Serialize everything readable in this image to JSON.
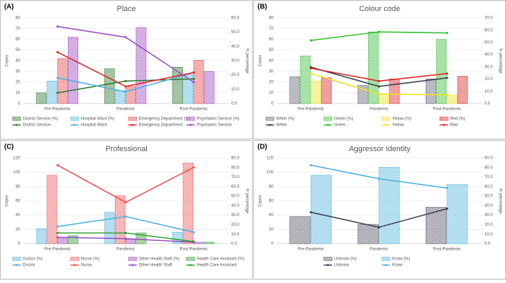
{
  "chart_data": [
    {
      "type": "combo",
      "panel": "(A)",
      "title": "Place",
      "y_label": "Cases",
      "y2_label": "% percentage",
      "categories": [
        "Pre-Pandemic",
        "Pandemic",
        "Post-Pandemic"
      ],
      "ylim": [
        0,
        80
      ],
      "yticks": [
        0,
        10,
        20,
        30,
        40,
        50,
        60,
        70,
        80
      ],
      "y2lim": [
        0,
        60
      ],
      "y2ticks": [
        {
          "value": 0,
          "label": "0.0"
        },
        {
          "value": 10,
          "label": "10.0"
        },
        {
          "value": 20,
          "label": "20.0"
        },
        {
          "value": 30,
          "label": "30.0"
        },
        {
          "value": 40,
          "label": "40.0"
        },
        {
          "value": 50,
          "label": "50.0"
        },
        {
          "value": 60,
          "label": "60.0"
        }
      ],
      "grid": true,
      "series": [
        {
          "name": "District Service (%)",
          "type": "bar",
          "axis": "y2",
          "color": "#3a7d3a",
          "values": [
            7.5,
            24.4,
            25.5
          ]
        },
        {
          "name": "Hospital Ward (%)",
          "type": "bar",
          "axis": "y2",
          "color": "#5bb8e0",
          "values": [
            15.8,
            9.0,
            20.3
          ]
        },
        {
          "name": "Emergency Department (%)",
          "type": "bar",
          "axis": "y2",
          "color": "#e85050",
          "values": [
            31.5,
            12.0,
            30.4
          ]
        },
        {
          "name": "Psychiatric Service (%)",
          "type": "bar",
          "axis": "y2",
          "color": "#a050c0",
          "values": [
            46.5,
            53.3,
            22.5
          ]
        },
        {
          "name": "District Service",
          "type": "line",
          "color": "#2f7a2f",
          "values": [
            10,
            21,
            23
          ]
        },
        {
          "name": "Hospital Ward",
          "type": "line",
          "color": "#4cb0e0",
          "values": [
            24,
            11,
            29
          ]
        },
        {
          "name": "Emergency Department",
          "type": "line",
          "color": "#e02020",
          "values": [
            48,
            16,
            29
          ]
        },
        {
          "name": "Psychiatric Service",
          "type": "line",
          "color": "#9a4cc0",
          "values": [
            72,
            62,
            20
          ]
        }
      ]
    },
    {
      "type": "combo",
      "panel": "(B)",
      "title": "Colour code",
      "y_label": "Cases",
      "y2_label": "% percentage",
      "categories": [
        "Pre-Pandemic",
        "Pandemic",
        "Post-Pandemic"
      ],
      "ylim": [
        0,
        80
      ],
      "yticks": [
        0,
        10,
        20,
        30,
        40,
        50,
        60,
        70,
        80
      ],
      "y2lim": [
        0,
        70
      ],
      "y2ticks": [
        {
          "value": 0,
          "label": "0.0"
        },
        {
          "value": 10,
          "label": "10.0"
        },
        {
          "value": 20,
          "label": "20.0"
        },
        {
          "value": 30,
          "label": "30.0"
        },
        {
          "value": 40,
          "label": "40.0"
        },
        {
          "value": 50,
          "label": "50.0"
        },
        {
          "value": 60,
          "label": "60.0"
        },
        {
          "value": 70,
          "label": "70.0"
        }
      ],
      "grid": true,
      "series": [
        {
          "name": "White (%)",
          "type": "bar",
          "axis": "y2",
          "color": "#6a6a78",
          "values": [
            21.9,
            14.9,
            20.1
          ]
        },
        {
          "name": "Green (%)",
          "type": "bar",
          "axis": "y2",
          "color": "#40c040",
          "values": [
            38.9,
            58.6,
            52.5
          ]
        },
        {
          "name": "Yellow (%)",
          "type": "bar",
          "axis": "y2",
          "color": "#f0e030",
          "values": [
            18.4,
            7.9,
            7.0
          ]
        },
        {
          "name": "Red (%)",
          "type": "bar",
          "axis": "y2",
          "color": "#e03030",
          "values": [
            21.0,
            20.1,
            22.3
          ]
        },
        {
          "name": "White",
          "type": "line",
          "color": "#3a3f50",
          "values": [
            34,
            16,
            24
          ]
        },
        {
          "name": "Green",
          "type": "line",
          "color": "#30c030",
          "values": [
            59,
            67,
            66
          ]
        },
        {
          "name": "Yellow",
          "type": "line",
          "color": "#f0e020",
          "values": [
            28,
            9,
            8
          ]
        },
        {
          "name": "Red",
          "type": "line",
          "color": "#e02020",
          "values": [
            33,
            21,
            28
          ]
        }
      ]
    },
    {
      "type": "combo",
      "panel": "(C)",
      "title": "Professional",
      "y_label": "Cases",
      "y2_label": "% percentage",
      "categories": [
        "Pre-Pandemic",
        "Pandemic",
        "Post-Pandemic"
      ],
      "ylim": [
        0,
        120
      ],
      "yticks": [
        0,
        20,
        40,
        60,
        80,
        100,
        120
      ],
      "y2lim": [
        0,
        90
      ],
      "y2ticks": [
        {
          "value": 0,
          "label": "0.0"
        },
        {
          "value": 10,
          "label": "10.0"
        },
        {
          "value": 20,
          "label": "20.0"
        },
        {
          "value": 30,
          "label": "30.0"
        },
        {
          "value": 40,
          "label": "40.0"
        },
        {
          "value": 50,
          "label": "50.0"
        },
        {
          "value": 60,
          "label": "60.0"
        },
        {
          "value": 70,
          "label": "70.0"
        },
        {
          "value": 80,
          "label": "80.0"
        },
        {
          "value": 90,
          "label": "90.0"
        }
      ],
      "grid": true,
      "series": [
        {
          "name": "Doctor (%)",
          "type": "bar",
          "axis": "y2",
          "color": "#5bb8e0",
          "values": [
            15.8,
            33.0,
            12.0
          ]
        },
        {
          "name": "Nurse (%)",
          "type": "bar",
          "axis": "y2",
          "color": "#f06060",
          "values": [
            72.0,
            50.3,
            84.8
          ]
        },
        {
          "name": "Other Health Staff (%)",
          "type": "bar",
          "axis": "y2",
          "color": "#a050c0",
          "values": [
            5.3,
            4.5,
            1.5
          ]
        },
        {
          "name": "Health Care Assistant (%)",
          "type": "bar",
          "axis": "y2",
          "color": "#40a040",
          "values": [
            8.3,
            11.3,
            1.5
          ]
        },
        {
          "name": "Doctor",
          "type": "line",
          "color": "#4cb0e0",
          "values": [
            24,
            38,
            16
          ]
        },
        {
          "name": "Nurse",
          "type": "line",
          "color": "#f05050",
          "values": [
            110,
            58,
            107
          ]
        },
        {
          "name": "Other Health Staff",
          "type": "line",
          "color": "#9a4cc0",
          "values": [
            9,
            7,
            2
          ]
        },
        {
          "name": "Health Care Assistant",
          "type": "line",
          "color": "#30a030",
          "values": [
            15,
            15,
            3
          ]
        }
      ]
    },
    {
      "type": "combo",
      "panel": "(D)",
      "title": "Aggressor Identity",
      "y_label": "Cases",
      "y2_label": "% percentage",
      "categories": [
        "Pre-Pandemic",
        "Pandemic",
        "Post-Pandemic"
      ],
      "ylim": [
        0,
        120
      ],
      "yticks": [
        0,
        20,
        40,
        60,
        80,
        100,
        120
      ],
      "y2lim": [
        0,
        90
      ],
      "y2ticks": [
        {
          "value": 0,
          "label": "0.0"
        },
        {
          "value": 10,
          "label": "10.0"
        },
        {
          "value": 20,
          "label": "20.0"
        },
        {
          "value": 30,
          "label": "30.0"
        },
        {
          "value": 40,
          "label": "40.0"
        },
        {
          "value": 50,
          "label": "50.0"
        },
        {
          "value": 60,
          "label": "60.0"
        },
        {
          "value": 70,
          "label": "70.0"
        },
        {
          "value": 80,
          "label": "80.0"
        },
        {
          "value": 90,
          "label": "90.0"
        }
      ],
      "grid": true,
      "series": [
        {
          "name": "Unknow (%)",
          "type": "bar",
          "axis": "y2",
          "color": "#5a5a6a",
          "values": [
            28.5,
            20.3,
            38.3
          ]
        },
        {
          "name": "Know (%)",
          "type": "bar",
          "axis": "y2",
          "color": "#5bb8e0",
          "values": [
            72.0,
            80.3,
            62.3
          ]
        },
        {
          "name": "Unknow",
          "type": "line",
          "color": "#3a3f50",
          "values": [
            44,
            23,
            49
          ]
        },
        {
          "name": "Know",
          "type": "line",
          "color": "#4cb0e0",
          "values": [
            110,
            91,
            78
          ]
        }
      ]
    }
  ]
}
